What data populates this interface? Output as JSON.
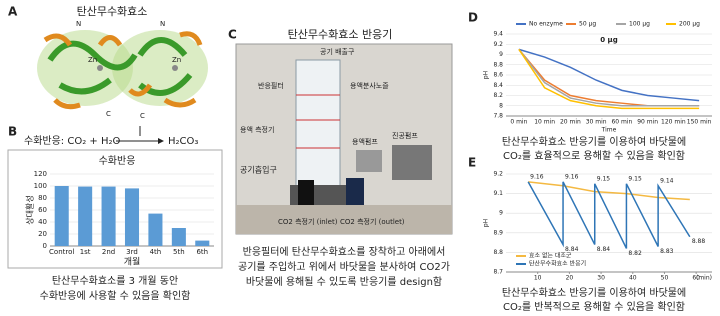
{
  "panels": {
    "a": {
      "label": "A",
      "title": "탄산무수화효소",
      "annotations": [
        "N",
        "N",
        "Zn",
        "Zn",
        "C",
        "C"
      ]
    },
    "b": {
      "label": "B",
      "equation_left": "수화반응: CO₂ + H₂O",
      "equation_right": "H₂CO₃",
      "caption": [
        "탄산무수화효소를 3 개월 동안",
        "수화반응에 사용할 수 있음을 확인함"
      ]
    },
    "c": {
      "label": "C",
      "title": "탄산무수화효소 반응기",
      "labels": [
        "공기 배출구",
        "반응필터",
        "용액분사노즐",
        "용액 측정기",
        "진공펌프",
        "용액펌프",
        "공기흡입구",
        "CO2 측정기 (inlet)",
        "CO2 측정기 (outlet)"
      ],
      "caption": [
        "반응필터에 탄산무수화효소를 장착하고 아래에서",
        "공기를 주입하고 위에서 바닷물을 분사하여 CO2가",
        "바닷물에 용해될 수 있도록 반응기를 design함"
      ]
    },
    "d": {
      "label": "D",
      "caption": [
        "탄산무수화효소 반응기를 이용하여 바닷물에",
        "CO₂를 효율적으로 용해할 수 있음을 확인함"
      ]
    },
    "e": {
      "label": "E",
      "caption": [
        "탄산무수화효소 반응기를 이용하여 바닷물에",
        "CO₂를 반복적으로 용해할 수 있음을 확인함"
      ]
    }
  },
  "chart_data": [
    {
      "type": "bar",
      "title": "수화반응",
      "x_label": "개월",
      "y_label": "상대활성",
      "categories": [
        "Control",
        "1st",
        "2nd",
        "3rd",
        "4th",
        "5th",
        "6th"
      ],
      "values": [
        100,
        99,
        99,
        96,
        54,
        30,
        9
      ],
      "color": "#5b9bd5",
      "ylim": [
        0,
        120
      ],
      "yticks": [
        0,
        20,
        40,
        60,
        80,
        100,
        120
      ],
      "grid": true
    },
    {
      "type": "line",
      "x_label": "Time",
      "y_label": "pH",
      "annotation": "0 μg",
      "categories": [
        "0 min",
        "10 min",
        "20 min",
        "30 min",
        "60 min",
        "90 min",
        "120 min",
        "150 min"
      ],
      "series": [
        {
          "name": "No enzyme",
          "color": "#4472c4",
          "values": [
            9.1,
            8.95,
            8.75,
            8.5,
            8.3,
            8.2,
            8.15,
            8.1
          ]
        },
        {
          "name": "50 μg",
          "color": "#ed7d31",
          "values": [
            9.1,
            8.5,
            8.2,
            8.1,
            8.05,
            8.0,
            8.0,
            8.0
          ]
        },
        {
          "name": "100 μg",
          "color": "#a5a5a5",
          "values": [
            9.1,
            8.45,
            8.15,
            8.05,
            8.0,
            8.0,
            8.0,
            8.0
          ]
        },
        {
          "name": "200 μg",
          "color": "#ffc000",
          "values": [
            9.1,
            8.35,
            8.1,
            8.0,
            7.95,
            7.95,
            7.95,
            7.95
          ]
        }
      ],
      "ylim": [
        7.8,
        9.4
      ],
      "yticks": [
        7.8,
        8,
        8.2,
        8.4,
        8.6,
        8.8,
        9,
        9.2,
        9.4
      ],
      "grid": true,
      "legend": "top"
    },
    {
      "type": "line",
      "x_label": "(min)",
      "y_label": "pH",
      "series": [
        {
          "name": "효소 없는 대조군",
          "color": "#f4b942",
          "x": [
            7,
            18,
            28,
            38,
            48,
            58
          ],
          "values": [
            9.16,
            9.14,
            9.11,
            9.1,
            9.08,
            9.07
          ]
        },
        {
          "name": "탄산무수화효소 반응기",
          "color": "#2e75b6",
          "labels": true,
          "x": [
            7,
            18,
            18,
            28,
            28,
            38,
            38,
            48,
            48,
            58
          ],
          "values": [
            9.16,
            8.84,
            9.16,
            8.84,
            9.15,
            8.82,
            9.15,
            8.83,
            9.14,
            8.88
          ]
        }
      ],
      "xlim": [
        0,
        65
      ],
      "xticks": [
        10,
        20,
        30,
        40,
        50,
        60
      ],
      "ylim": [
        8.7,
        9.2
      ],
      "yticks": [
        8.7,
        8.8,
        8.9,
        9,
        9.1,
        9.2
      ],
      "grid": true,
      "legend": "lower left"
    }
  ]
}
